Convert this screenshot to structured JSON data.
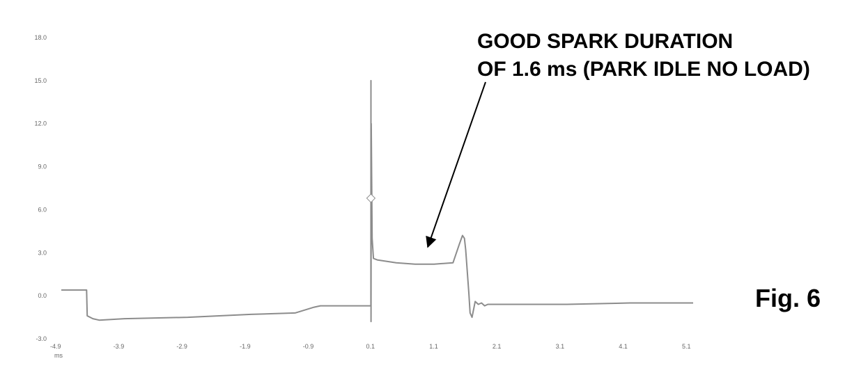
{
  "chart_data": {
    "type": "line",
    "title": "",
    "xlabel": "ms",
    "ylabel": "",
    "xlim": [
      -4.9,
      5.1
    ],
    "ylim": [
      -3.0,
      18.0
    ],
    "x_ticks": [
      "-4.9",
      "-3.9",
      "-2.9",
      "-1.9",
      "-0.9",
      "0.1",
      "1.1",
      "2.1",
      "3.1",
      "4.1",
      "5.1"
    ],
    "y_ticks": [
      "18.0",
      "15.0",
      "12.0",
      "9.0",
      "6.0",
      "3.0",
      "0.0",
      "-3.0"
    ],
    "grid": false,
    "series": [
      {
        "color": "#8c8c8c",
        "x": [
          -4.9,
          -4.5,
          -4.49,
          -4.4,
          -4.3,
          -3.9,
          -2.9,
          -1.9,
          -1.2,
          -0.9,
          -0.8,
          0.0,
          0.001,
          0.002,
          0.005,
          0.02,
          0.04,
          0.1,
          0.4,
          0.7,
          1.0,
          1.3,
          1.4,
          1.45,
          1.48,
          1.5,
          1.52,
          1.55,
          1.57,
          1.6,
          1.65,
          1.7,
          1.75,
          1.8,
          1.85,
          1.9,
          2.0,
          2.1,
          3.1,
          4.1,
          5.1
        ],
        "y": [
          0.4,
          0.4,
          -1.4,
          -1.6,
          -1.7,
          -1.6,
          -1.5,
          -1.3,
          -1.2,
          -0.8,
          -0.7,
          -0.7,
          15.0,
          -1.8,
          12.0,
          4.0,
          2.6,
          2.5,
          2.3,
          2.2,
          2.2,
          2.3,
          3.6,
          4.2,
          4.0,
          3.2,
          2.0,
          0.2,
          -1.2,
          -1.5,
          -0.4,
          -0.6,
          -0.5,
          -0.7,
          -0.6,
          -0.6,
          -0.6,
          -0.6,
          -0.6,
          -0.5,
          -0.5
        ]
      }
    ],
    "annotations": [
      {
        "text": "GOOD SPARK DURATION",
        "target_x": 0.9,
        "target_y": 3.4
      },
      {
        "text": "OF 1.6 ms (PARK IDLE NO LOAD)"
      }
    ],
    "figure_label": "Fig. 6",
    "colors": {
      "trace": "#8c8c8c",
      "text": "#000000",
      "tick": "#666666"
    }
  }
}
